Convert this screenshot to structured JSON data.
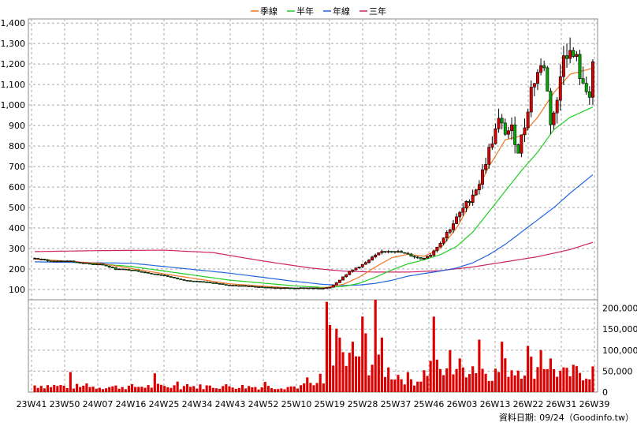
{
  "chart_data": {
    "type": "candlestick",
    "legend": [
      {
        "label": "季線",
        "color": "#ee7722"
      },
      {
        "label": "半年",
        "color": "#22cc22"
      },
      {
        "label": "年線",
        "color": "#2266dd"
      },
      {
        "label": "三年",
        "color": "#cc2266"
      }
    ],
    "price_axis": {
      "ticks": [
        "100",
        "200",
        "300",
        "400",
        "500",
        "600",
        "700",
        "800",
        "900",
        "1,000",
        "1,100",
        "1,200",
        "1,300",
        "1,400"
      ],
      "range": [
        50,
        1420
      ]
    },
    "volume_axis": {
      "ticks": [
        "0",
        "50,000",
        "100,000",
        "150,000",
        "200,000"
      ],
      "range": [
        0,
        220000
      ]
    },
    "x_ticks": [
      "23W41",
      "23W50",
      "24W07",
      "24W16",
      "24W25",
      "24W34",
      "24W43",
      "24W52",
      "25W10",
      "25W19",
      "25W28",
      "25W37",
      "25W46",
      "26W03",
      "26W13",
      "26W22",
      "26W31",
      "26W39"
    ],
    "price_anchors": [
      [
        0,
        252
      ],
      [
        5,
        238
      ],
      [
        10,
        240
      ],
      [
        15,
        228
      ],
      [
        20,
        224
      ],
      [
        25,
        200
      ],
      [
        30,
        195
      ],
      [
        35,
        180
      ],
      [
        40,
        168
      ],
      [
        45,
        148
      ],
      [
        50,
        140
      ],
      [
        55,
        132
      ],
      [
        60,
        120
      ],
      [
        65,
        118
      ],
      [
        70,
        112
      ],
      [
        75,
        108
      ],
      [
        80,
        108
      ],
      [
        85,
        108
      ],
      [
        88,
        105
      ],
      [
        91,
        112
      ],
      [
        93,
        135
      ],
      [
        96,
        175
      ],
      [
        99,
        205
      ],
      [
        102,
        230
      ],
      [
        104,
        255
      ],
      [
        107,
        285
      ],
      [
        110,
        290
      ],
      [
        113,
        280
      ],
      [
        116,
        265
      ],
      [
        119,
        250
      ],
      [
        122,
        270
      ],
      [
        125,
        330
      ],
      [
        128,
        400
      ],
      [
        131,
        470
      ],
      [
        134,
        540
      ],
      [
        137,
        620
      ],
      [
        140,
        780
      ],
      [
        143,
        920
      ],
      [
        145,
        870
      ],
      [
        147,
        880
      ],
      [
        149,
        780
      ],
      [
        151,
        900
      ],
      [
        153,
        1080
      ],
      [
        155,
        1160
      ],
      [
        157,
        1200
      ],
      [
        159,
        920
      ],
      [
        161,
        1010
      ],
      [
        163,
        1270
      ],
      [
        165,
        1250
      ],
      [
        167,
        1220
      ],
      [
        169,
        1080
      ],
      [
        171,
        1060
      ],
      [
        172,
        1210
      ]
    ],
    "volume_anchors": [
      [
        0,
        16000
      ],
      [
        10,
        14000
      ],
      [
        20,
        12000
      ],
      [
        30,
        13000
      ],
      [
        40,
        14000
      ],
      [
        50,
        13000
      ],
      [
        60,
        14000
      ],
      [
        70,
        12000
      ],
      [
        80,
        13000
      ],
      [
        89,
        18000
      ],
      [
        90,
        85000
      ],
      [
        92,
        110000
      ],
      [
        94,
        95000
      ],
      [
        96,
        70000
      ],
      [
        98,
        80000
      ],
      [
        100,
        90000
      ],
      [
        102,
        70000
      ],
      [
        104,
        75000
      ],
      [
        106,
        60000
      ],
      [
        108,
        55000
      ],
      [
        110,
        45000
      ],
      [
        112,
        40000
      ],
      [
        114,
        35000
      ],
      [
        116,
        30000
      ],
      [
        118,
        28000
      ],
      [
        120,
        45000
      ],
      [
        122,
        60000
      ],
      [
        124,
        55000
      ],
      [
        126,
        45000
      ],
      [
        128,
        40000
      ],
      [
        130,
        60000
      ],
      [
        132,
        55000
      ],
      [
        134,
        65000
      ],
      [
        136,
        60000
      ],
      [
        138,
        55000
      ],
      [
        140,
        50000
      ],
      [
        142,
        45000
      ],
      [
        144,
        55000
      ],
      [
        146,
        60000
      ],
      [
        148,
        55000
      ],
      [
        150,
        60000
      ],
      [
        152,
        65000
      ],
      [
        154,
        60000
      ],
      [
        156,
        55000
      ],
      [
        158,
        75000
      ],
      [
        160,
        55000
      ],
      [
        162,
        45000
      ],
      [
        164,
        40000
      ],
      [
        166,
        45000
      ],
      [
        168,
        50000
      ],
      [
        170,
        45000
      ],
      [
        172,
        50000
      ]
    ],
    "volume_spikes": [
      [
        90,
        215000
      ],
      [
        91,
        160000
      ],
      [
        94,
        130000
      ],
      [
        98,
        120000
      ],
      [
        101,
        180000
      ],
      [
        102,
        140000
      ],
      [
        105,
        220000
      ],
      [
        107,
        130000
      ],
      [
        123,
        180000
      ],
      [
        128,
        100000
      ],
      [
        137,
        125000
      ],
      [
        144,
        120000
      ],
      [
        152,
        110000
      ],
      [
        156,
        100000
      ]
    ],
    "ma_quarter_anchors": [
      [
        0,
        248
      ],
      [
        20,
        228
      ],
      [
        40,
        176
      ],
      [
        60,
        128
      ],
      [
        80,
        106
      ],
      [
        89,
        108
      ],
      [
        95,
        125
      ],
      [
        100,
        160
      ],
      [
        105,
        210
      ],
      [
        110,
        255
      ],
      [
        115,
        272
      ],
      [
        120,
        262
      ],
      [
        125,
        300
      ],
      [
        130,
        400
      ],
      [
        135,
        540
      ],
      [
        140,
        700
      ],
      [
        145,
        830
      ],
      [
        150,
        850
      ],
      [
        155,
        940
      ],
      [
        160,
        1060
      ],
      [
        165,
        1150
      ],
      [
        172,
        1180
      ]
    ],
    "ma_half_anchors": [
      [
        0,
        250
      ],
      [
        30,
        212
      ],
      [
        60,
        146
      ],
      [
        80,
        118
      ],
      [
        89,
        110
      ],
      [
        95,
        115
      ],
      [
        100,
        130
      ],
      [
        105,
        160
      ],
      [
        110,
        195
      ],
      [
        115,
        225
      ],
      [
        120,
        245
      ],
      [
        125,
        270
      ],
      [
        130,
        310
      ],
      [
        135,
        380
      ],
      [
        140,
        480
      ],
      [
        145,
        580
      ],
      [
        150,
        680
      ],
      [
        155,
        770
      ],
      [
        160,
        880
      ],
      [
        165,
        940
      ],
      [
        172,
        990
      ]
    ],
    "ma_year_anchors": [
      [
        0,
        235
      ],
      [
        30,
        228
      ],
      [
        60,
        180
      ],
      [
        80,
        140
      ],
      [
        89,
        125
      ],
      [
        95,
        120
      ],
      [
        100,
        122
      ],
      [
        105,
        130
      ],
      [
        110,
        145
      ],
      [
        115,
        165
      ],
      [
        120,
        178
      ],
      [
        125,
        190
      ],
      [
        130,
        205
      ],
      [
        135,
        230
      ],
      [
        140,
        270
      ],
      [
        145,
        320
      ],
      [
        150,
        380
      ],
      [
        155,
        440
      ],
      [
        160,
        500
      ],
      [
        165,
        570
      ],
      [
        172,
        660
      ]
    ],
    "ma_three_anchors": [
      [
        0,
        285
      ],
      [
        20,
        290
      ],
      [
        40,
        292
      ],
      [
        55,
        280
      ],
      [
        70,
        240
      ],
      [
        85,
        205
      ],
      [
        95,
        190
      ],
      [
        105,
        185
      ],
      [
        115,
        185
      ],
      [
        125,
        192
      ],
      [
        135,
        210
      ],
      [
        145,
        235
      ],
      [
        155,
        260
      ],
      [
        165,
        295
      ],
      [
        172,
        330
      ]
    ]
  },
  "credit": "資料日期: 09/24（Goodinfo.tw）"
}
